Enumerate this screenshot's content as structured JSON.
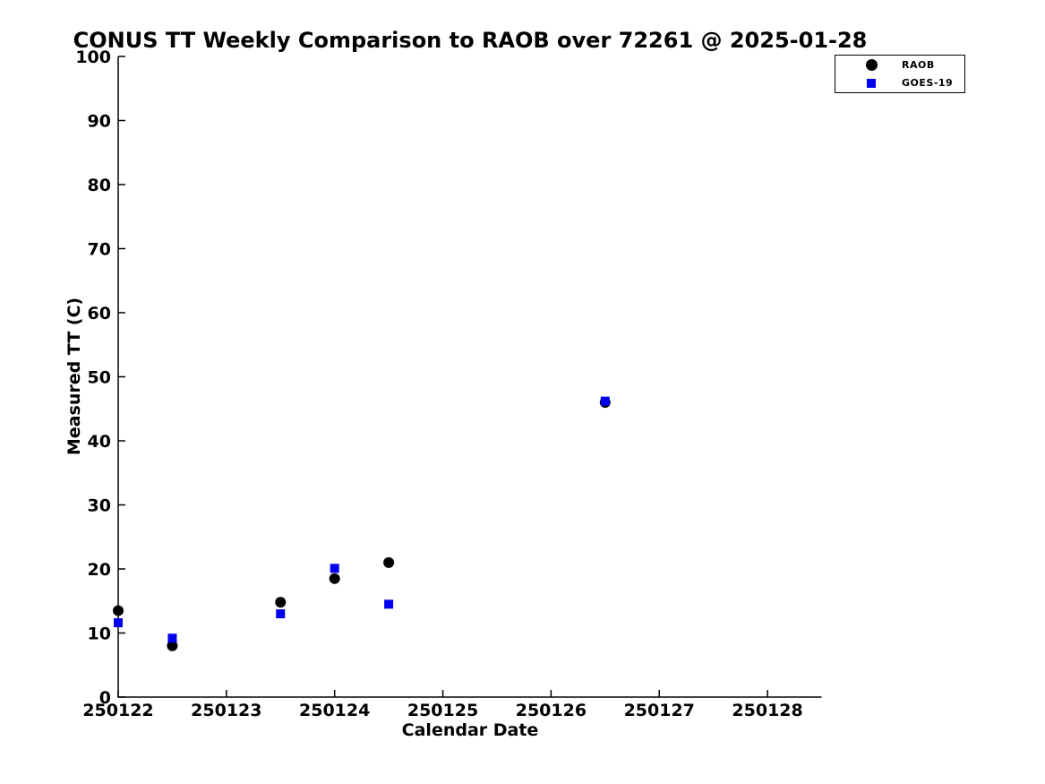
{
  "window": {
    "background": "#ffffff"
  },
  "chart_data": {
    "type": "scatter",
    "title": "CONUS TT Weekly Comparison to RAOB over 72261 @ 2025-01-28",
    "xlabel": "Calendar Date",
    "ylabel": "Measured TT (C)",
    "xlim": [
      250122,
      250128.5
    ],
    "ylim": [
      0,
      100
    ],
    "x_ticks": [
      "250122",
      "250123",
      "250124",
      "250125",
      "250126",
      "250127",
      "250128"
    ],
    "y_ticks": [
      0,
      10,
      20,
      30,
      40,
      50,
      60,
      70,
      80,
      90,
      100
    ],
    "grid": false,
    "axis_color": "#000000",
    "legend": {
      "position": "top-right",
      "entries": [
        "RAOB",
        "GOES-19"
      ]
    },
    "series": [
      {
        "name": "RAOB",
        "marker": "circle",
        "color": "#000000",
        "points": [
          [
            250122.0,
            13.5
          ],
          [
            250122.5,
            8.0
          ],
          [
            250123.5,
            14.8
          ],
          [
            250124.0,
            18.5
          ],
          [
            250124.5,
            21.0
          ],
          [
            250126.5,
            46.0
          ]
        ]
      },
      {
        "name": "GOES-19",
        "marker": "square",
        "color": "#0000ee",
        "points": [
          [
            250122.0,
            11.6
          ],
          [
            250122.5,
            9.2
          ],
          [
            250123.5,
            13.0
          ],
          [
            250124.0,
            20.1
          ],
          [
            250124.5,
            14.5
          ],
          [
            250126.5,
            46.2
          ]
        ]
      }
    ]
  }
}
